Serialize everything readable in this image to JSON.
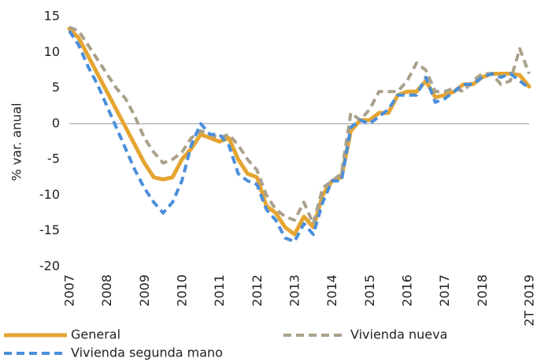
{
  "chart_data": {
    "type": "line",
    "y_label": "% var. anual",
    "categories": [
      "2007",
      null,
      null,
      null,
      "2008",
      null,
      null,
      null,
      "2009",
      null,
      null,
      null,
      "2010",
      null,
      null,
      null,
      "2011",
      null,
      null,
      null,
      "2012",
      null,
      null,
      null,
      "2013",
      null,
      null,
      null,
      "2014",
      null,
      null,
      null,
      "2015",
      null,
      null,
      null,
      "2016",
      null,
      null,
      null,
      "2017",
      null,
      null,
      null,
      "2018",
      null,
      null,
      null,
      null,
      "2T 2019"
    ],
    "series": [
      {
        "name": "General",
        "color": "#e5a532",
        "dash": "solid",
        "values": [
          13.3,
          12,
          9.5,
          7,
          4.5,
          2,
          -0.5,
          -3,
          -5.5,
          -7.5,
          -7.8,
          -7.5,
          -5,
          -3.5,
          -1.5,
          -2,
          -2.5,
          -2,
          -5,
          -7,
          -7.5,
          -11.5,
          -12.5,
          -14.5,
          -15.5,
          -13,
          -14.5,
          -10,
          -8,
          -7.5,
          -1,
          0.5,
          0.5,
          1.5,
          1.5,
          4,
          4.5,
          4.5,
          6,
          3.7,
          4,
          4.5,
          5.5,
          5.5,
          6.5,
          7,
          7,
          7,
          6.8,
          5.2
        ]
      },
      {
        "name": "Vivienda nueva",
        "color": "#aaa18b",
        "dash": "dashed",
        "values": [
          13.5,
          13,
          11,
          9,
          7,
          5,
          3.5,
          1,
          -2,
          -4,
          -5.5,
          -5,
          -4,
          -2,
          -1,
          -1.5,
          -2,
          -1.5,
          -3,
          -5,
          -6.5,
          -10,
          -12,
          -13,
          -13.5,
          -11,
          -14,
          -9,
          -8,
          -7,
          1.5,
          0.5,
          2,
          4.5,
          4.5,
          4.5,
          6,
          8.5,
          7.5,
          4.5,
          4.5,
          5,
          4.5,
          6,
          7,
          7,
          5.5,
          6,
          10.5,
          7
        ]
      },
      {
        "name": "Vivienda segunda mano",
        "color": "#4a8fdc",
        "dash": "dashed",
        "values": [
          13,
          11,
          8,
          5.5,
          2.5,
          -0.5,
          -3.5,
          -6.5,
          -9,
          -11,
          -12.5,
          -11,
          -8,
          -3,
          0,
          -1.5,
          -1.5,
          -3,
          -7,
          -8,
          -8.5,
          -12,
          -13.5,
          -16,
          -16.5,
          -14,
          -15.5,
          -11,
          -8,
          -8,
          -0.5,
          0.5,
          0,
          1,
          2,
          4,
          4,
          4,
          6.5,
          3,
          3.5,
          4.5,
          5.5,
          5.5,
          6.5,
          7,
          6.5,
          7,
          6,
          5
        ]
      }
    ],
    "ylim": [
      -20,
      15
    ],
    "yticks": [
      -20,
      -15,
      -10,
      -5,
      0,
      5,
      10,
      15
    ],
    "grid": false,
    "legend": "bottom"
  }
}
